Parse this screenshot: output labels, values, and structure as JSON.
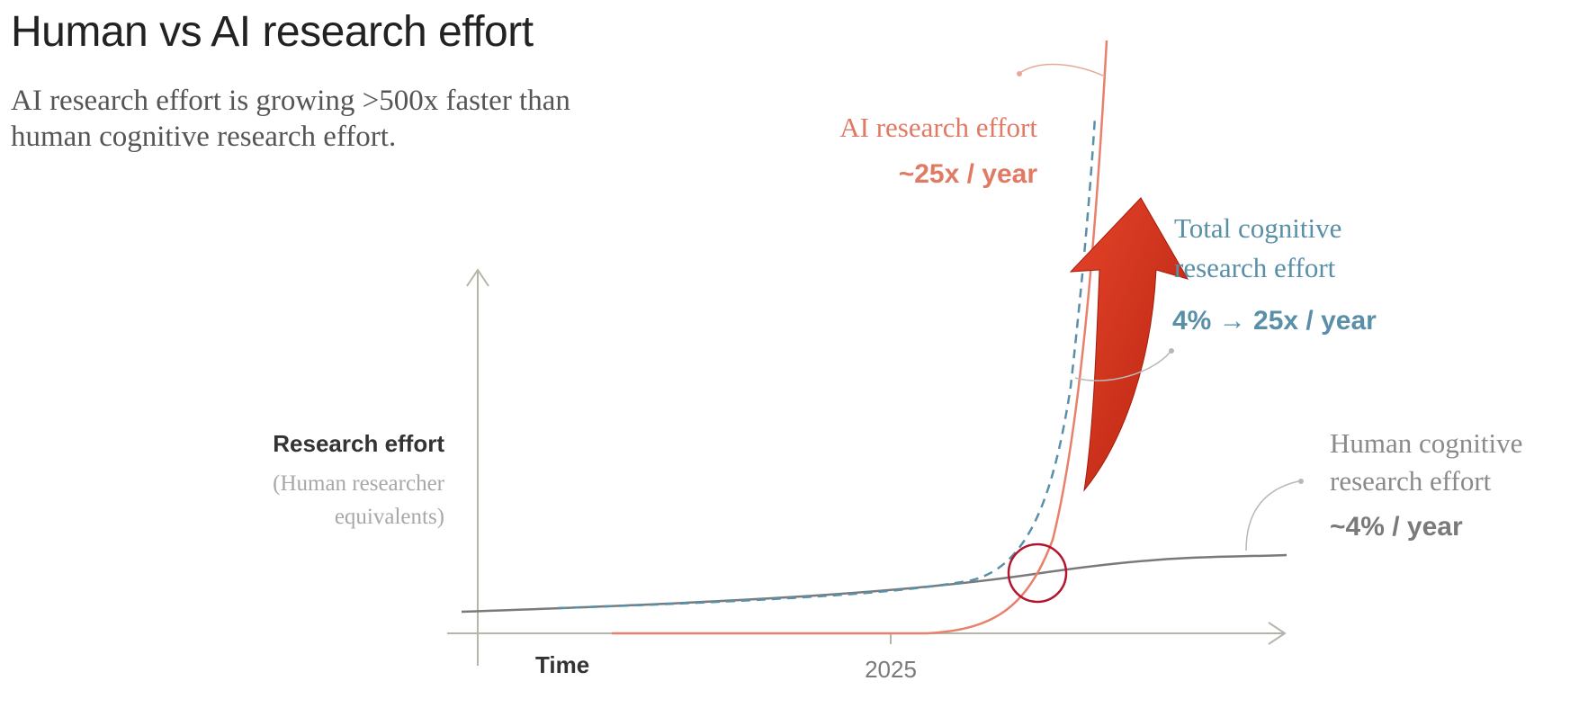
{
  "title": "Human vs AI research effort",
  "subtitle": "AI research effort is growing >500x faster than human cognitive research effort.",
  "colors": {
    "ai": "#e8806c",
    "ai_text": "#e07a64",
    "total": "#5a8fa8",
    "human": "#7a7a7a",
    "human_text": "#8a8a8a",
    "axis": "#b5b5a8",
    "arrow": "#d0311a",
    "circle": "#b3152e"
  },
  "chart_data": {
    "type": "line",
    "xlabel": "Time",
    "ylabel": "Research effort",
    "ylabel_sub": "(Human researcher equivalents)",
    "x_ticks": [
      "2025"
    ],
    "series": [
      {
        "name": "AI research effort",
        "rate": "~25x / year",
        "style": "solid",
        "color": "#e8806c",
        "points": [
          [
            2020,
            0
          ],
          [
            2025,
            0
          ],
          [
            2025.6,
            0.05
          ],
          [
            2026.5,
            0.3
          ],
          [
            2027,
            1.0
          ],
          [
            2027.5,
            5
          ],
          [
            2027.9,
            14
          ]
        ]
      },
      {
        "name": "Total cognitive research effort",
        "rate": "4% → 25x / year",
        "style": "dashed",
        "color": "#5a8fa8",
        "points": [
          [
            2021,
            0.3
          ],
          [
            2025,
            0.6
          ],
          [
            2026,
            0.9
          ],
          [
            2026.7,
            1.8
          ],
          [
            2027.3,
            5
          ],
          [
            2027.9,
            12.5
          ]
        ]
      },
      {
        "name": "Human cognitive research effort",
        "rate": "~4% / year",
        "style": "solid",
        "color": "#7a7a7a",
        "points": [
          [
            2020,
            0.25
          ],
          [
            2022,
            0.4
          ],
          [
            2024,
            0.6
          ],
          [
            2026,
            0.9
          ],
          [
            2028,
            1.25
          ],
          [
            2030,
            1.6
          ]
        ]
      }
    ],
    "annotations": [
      {
        "type": "circle",
        "label": "crossover",
        "x": 2026.8,
        "y": 1.0
      },
      {
        "type": "arrow",
        "label": "growth-acceleration",
        "from": [
          2027.4,
          3.5
        ],
        "to": [
          2027.6,
          10.5
        ]
      }
    ]
  }
}
